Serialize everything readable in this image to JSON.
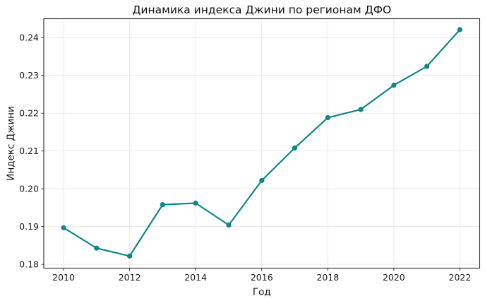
{
  "chart_data": {
    "type": "line",
    "title": "Динамика индекса Джини по регионам ДФО",
    "xlabel": "Год",
    "ylabel": "Индекс Джини",
    "x": [
      2010,
      2011,
      2012,
      2013,
      2014,
      2015,
      2016,
      2017,
      2018,
      2019,
      2020,
      2021,
      2022
    ],
    "series": [
      {
        "name": "Индекс Джини",
        "color": "#0f868a",
        "marker": "circle",
        "values": [
          0.1897,
          0.1843,
          0.1822,
          0.1958,
          0.1962,
          0.1904,
          0.2022,
          0.2108,
          0.2188,
          0.221,
          0.2274,
          0.2324,
          0.2421
        ]
      }
    ],
    "xticks": [
      2010,
      2012,
      2014,
      2016,
      2018,
      2020,
      2022
    ],
    "yticks": [
      0.18,
      0.19,
      0.2,
      0.21,
      0.22,
      0.23,
      0.24
    ],
    "ytick_decimals": 2,
    "xlim": [
      2009.4,
      2022.6
    ],
    "ylim": [
      0.179,
      0.245
    ],
    "grid": true,
    "legend": false,
    "colors": {
      "line": "#0f868a",
      "grid": "#e7e7e7",
      "spine": "#262626",
      "text": "#1a1a1a",
      "background": "#ffffff"
    }
  }
}
